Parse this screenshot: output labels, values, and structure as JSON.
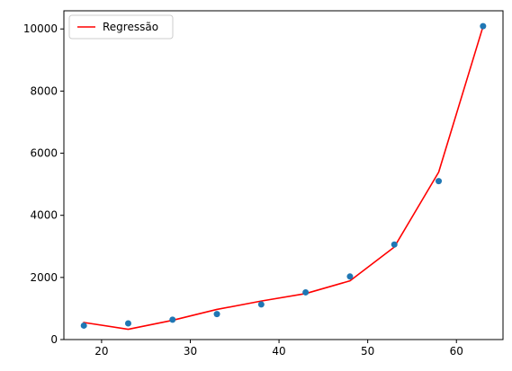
{
  "chart_data": {
    "type": "scatter",
    "title": "",
    "xlabel": "",
    "ylabel": "",
    "xlim": [
      15.75,
      65.25
    ],
    "ylim": [
      0,
      10585
    ],
    "grid": false,
    "legend_placement": "top-left",
    "x_ticks": [
      20,
      30,
      40,
      50,
      60
    ],
    "y_ticks": [
      0,
      2000,
      4000,
      6000,
      8000,
      10000
    ],
    "x_tick_labels": [
      "20",
      "30",
      "40",
      "50",
      "60"
    ],
    "y_tick_labels": [
      "0",
      "2000",
      "4000",
      "6000",
      "8000",
      "10000"
    ],
    "series": [
      {
        "type": "scatter",
        "color": "#1f77b4",
        "x": [
          18,
          23,
          28,
          33,
          38,
          43,
          48,
          53,
          58,
          63
        ],
        "y": [
          450,
          520,
          640,
          820,
          1130,
          1520,
          2030,
          3060,
          5100,
          10090
        ]
      },
      {
        "type": "line",
        "name": "Regressão",
        "color": "#ff0000",
        "x": [
          18,
          23,
          28,
          33,
          38,
          43,
          48,
          53,
          58,
          63
        ],
        "y": [
          550,
          330,
          620,
          970,
          1240,
          1480,
          1890,
          2980,
          5390,
          10080
        ]
      }
    ]
  }
}
